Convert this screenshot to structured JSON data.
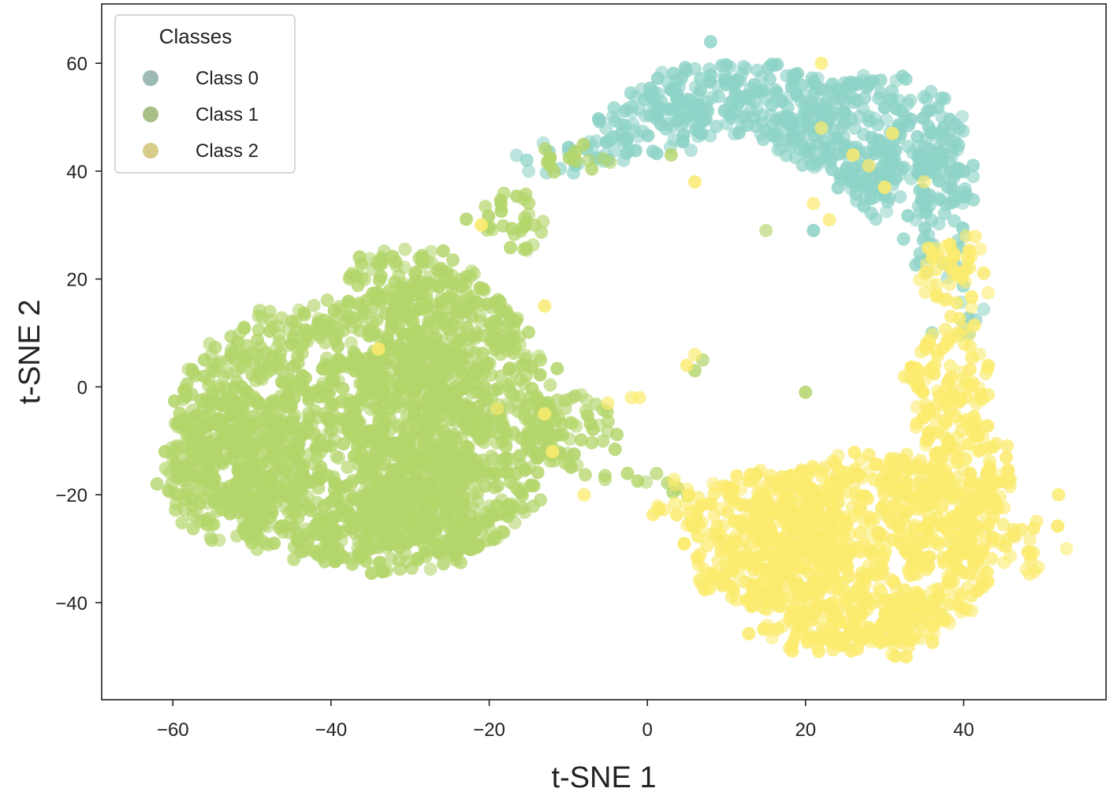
{
  "chart_data": {
    "type": "scatter",
    "title": "",
    "xlabel": "t-SNE 1",
    "ylabel": "t-SNE 2",
    "xlim": [
      -69,
      58
    ],
    "ylim": [
      -58,
      71
    ],
    "xticks": [
      -60,
      -40,
      -20,
      0,
      20,
      40
    ],
    "yticks": [
      -40,
      -20,
      0,
      20,
      40,
      60
    ],
    "xtick_labels": [
      "−60",
      "−40",
      "−20",
      "0",
      "20",
      "40"
    ],
    "ytick_labels": [
      "−40",
      "−20",
      "0",
      "20",
      "40",
      "60"
    ],
    "grid": false,
    "legend": {
      "title": "Classes",
      "position": "top-left",
      "entries": [
        "Class 0",
        "Class 1",
        "Class 2"
      ]
    },
    "series": [
      {
        "name": "Class 0",
        "color": "#8ed3c7",
        "legend_color": "#9dbab5",
        "regions": [
          {
            "cx": 12,
            "cy": 53,
            "rx": 14,
            "ry": 7,
            "density": 0.9
          },
          {
            "cx": 28,
            "cy": 47,
            "rx": 12,
            "ry": 10,
            "density": 0.9
          },
          {
            "cx": 33,
            "cy": 38,
            "rx": 9,
            "ry": 7,
            "density": 0.8
          },
          {
            "cx": 0,
            "cy": 48,
            "rx": 8,
            "ry": 5,
            "density": 0.7
          },
          {
            "cx": -10,
            "cy": 43,
            "rx": 6,
            "ry": 3,
            "density": 0.5
          },
          {
            "cx": 37,
            "cy": 26,
            "rx": 4,
            "ry": 6,
            "density": 0.5
          },
          {
            "cx": 40,
            "cy": 13,
            "rx": 2,
            "ry": 6,
            "density": 0.3
          }
        ],
        "points": [
          [
            8,
            64
          ],
          [
            36,
            10
          ],
          [
            -3,
            42
          ],
          [
            21,
            29
          ],
          [
            -15,
            40
          ]
        ]
      },
      {
        "name": "Class 1",
        "color": "#b3d56a",
        "legend_color": "#a7bf87",
        "regions": [
          {
            "cx": -40,
            "cy": -8,
            "rx": 20,
            "ry": 24,
            "density": 1.0
          },
          {
            "cx": -25,
            "cy": -5,
            "rx": 13,
            "ry": 26,
            "density": 1.0
          },
          {
            "cx": -52,
            "cy": -15,
            "rx": 9,
            "ry": 14,
            "density": 0.9
          },
          {
            "cx": -33,
            "cy": -28,
            "rx": 12,
            "ry": 6,
            "density": 0.8
          },
          {
            "cx": -10,
            "cy": -8,
            "rx": 6,
            "ry": 7,
            "density": 0.7
          },
          {
            "cx": -17,
            "cy": 30,
            "rx": 4,
            "ry": 6,
            "density": 0.6
          },
          {
            "cx": -10,
            "cy": 42,
            "rx": 5,
            "ry": 3,
            "density": 0.5
          },
          {
            "cx": -3,
            "cy": -17,
            "rx": 4,
            "ry": 2,
            "density": 0.4
          },
          {
            "cx": 3,
            "cy": -20,
            "rx": 3,
            "ry": 2,
            "density": 0.3
          },
          {
            "cx": -30,
            "cy": 20,
            "rx": 8,
            "ry": 6,
            "density": 0.8
          }
        ],
        "points": [
          [
            -62,
            -18
          ],
          [
            -61,
            -12
          ],
          [
            -56,
            5
          ],
          [
            6,
            3
          ],
          [
            7,
            5
          ],
          [
            20,
            -1
          ],
          [
            15,
            29
          ],
          [
            3,
            43
          ]
        ]
      },
      {
        "name": "Class 2",
        "color": "#fbeb6d",
        "legend_color": "#d8cc89",
        "regions": [
          {
            "cx": 28,
            "cy": -30,
            "rx": 16,
            "ry": 18,
            "density": 1.0
          },
          {
            "cx": 15,
            "cy": -28,
            "rx": 10,
            "ry": 13,
            "density": 1.0
          },
          {
            "cx": 40,
            "cy": -20,
            "rx": 6,
            "ry": 14,
            "density": 0.8
          },
          {
            "cx": 38,
            "cy": 0,
            "rx": 5,
            "ry": 12,
            "density": 0.8
          },
          {
            "cx": 39,
            "cy": 20,
            "rx": 4,
            "ry": 9,
            "density": 0.6
          },
          {
            "cx": 49,
            "cy": -30,
            "rx": 4,
            "ry": 5,
            "density": 0.5
          },
          {
            "cx": 25,
            "cy": -46,
            "rx": 12,
            "ry": 4,
            "density": 0.8
          },
          {
            "cx": 5,
            "cy": -22,
            "rx": 4,
            "ry": 4,
            "density": 0.5
          }
        ],
        "points": [
          [
            -34,
            7
          ],
          [
            -19,
            -4
          ],
          [
            -13,
            -5
          ],
          [
            -13,
            15
          ],
          [
            -21,
            30
          ],
          [
            22,
            60
          ],
          [
            22,
            48
          ],
          [
            31,
            47
          ],
          [
            26,
            43
          ],
          [
            28,
            41
          ],
          [
            35,
            38
          ],
          [
            21,
            34
          ],
          [
            23,
            31
          ],
          [
            30,
            37
          ],
          [
            6,
            38
          ],
          [
            -2,
            -2
          ],
          [
            -5,
            -3
          ],
          [
            5,
            4
          ],
          [
            6,
            6
          ],
          [
            -1,
            -2
          ],
          [
            52,
            -20
          ],
          [
            53,
            -30
          ],
          [
            -12,
            -12
          ],
          [
            -8,
            -20
          ]
        ]
      }
    ]
  }
}
